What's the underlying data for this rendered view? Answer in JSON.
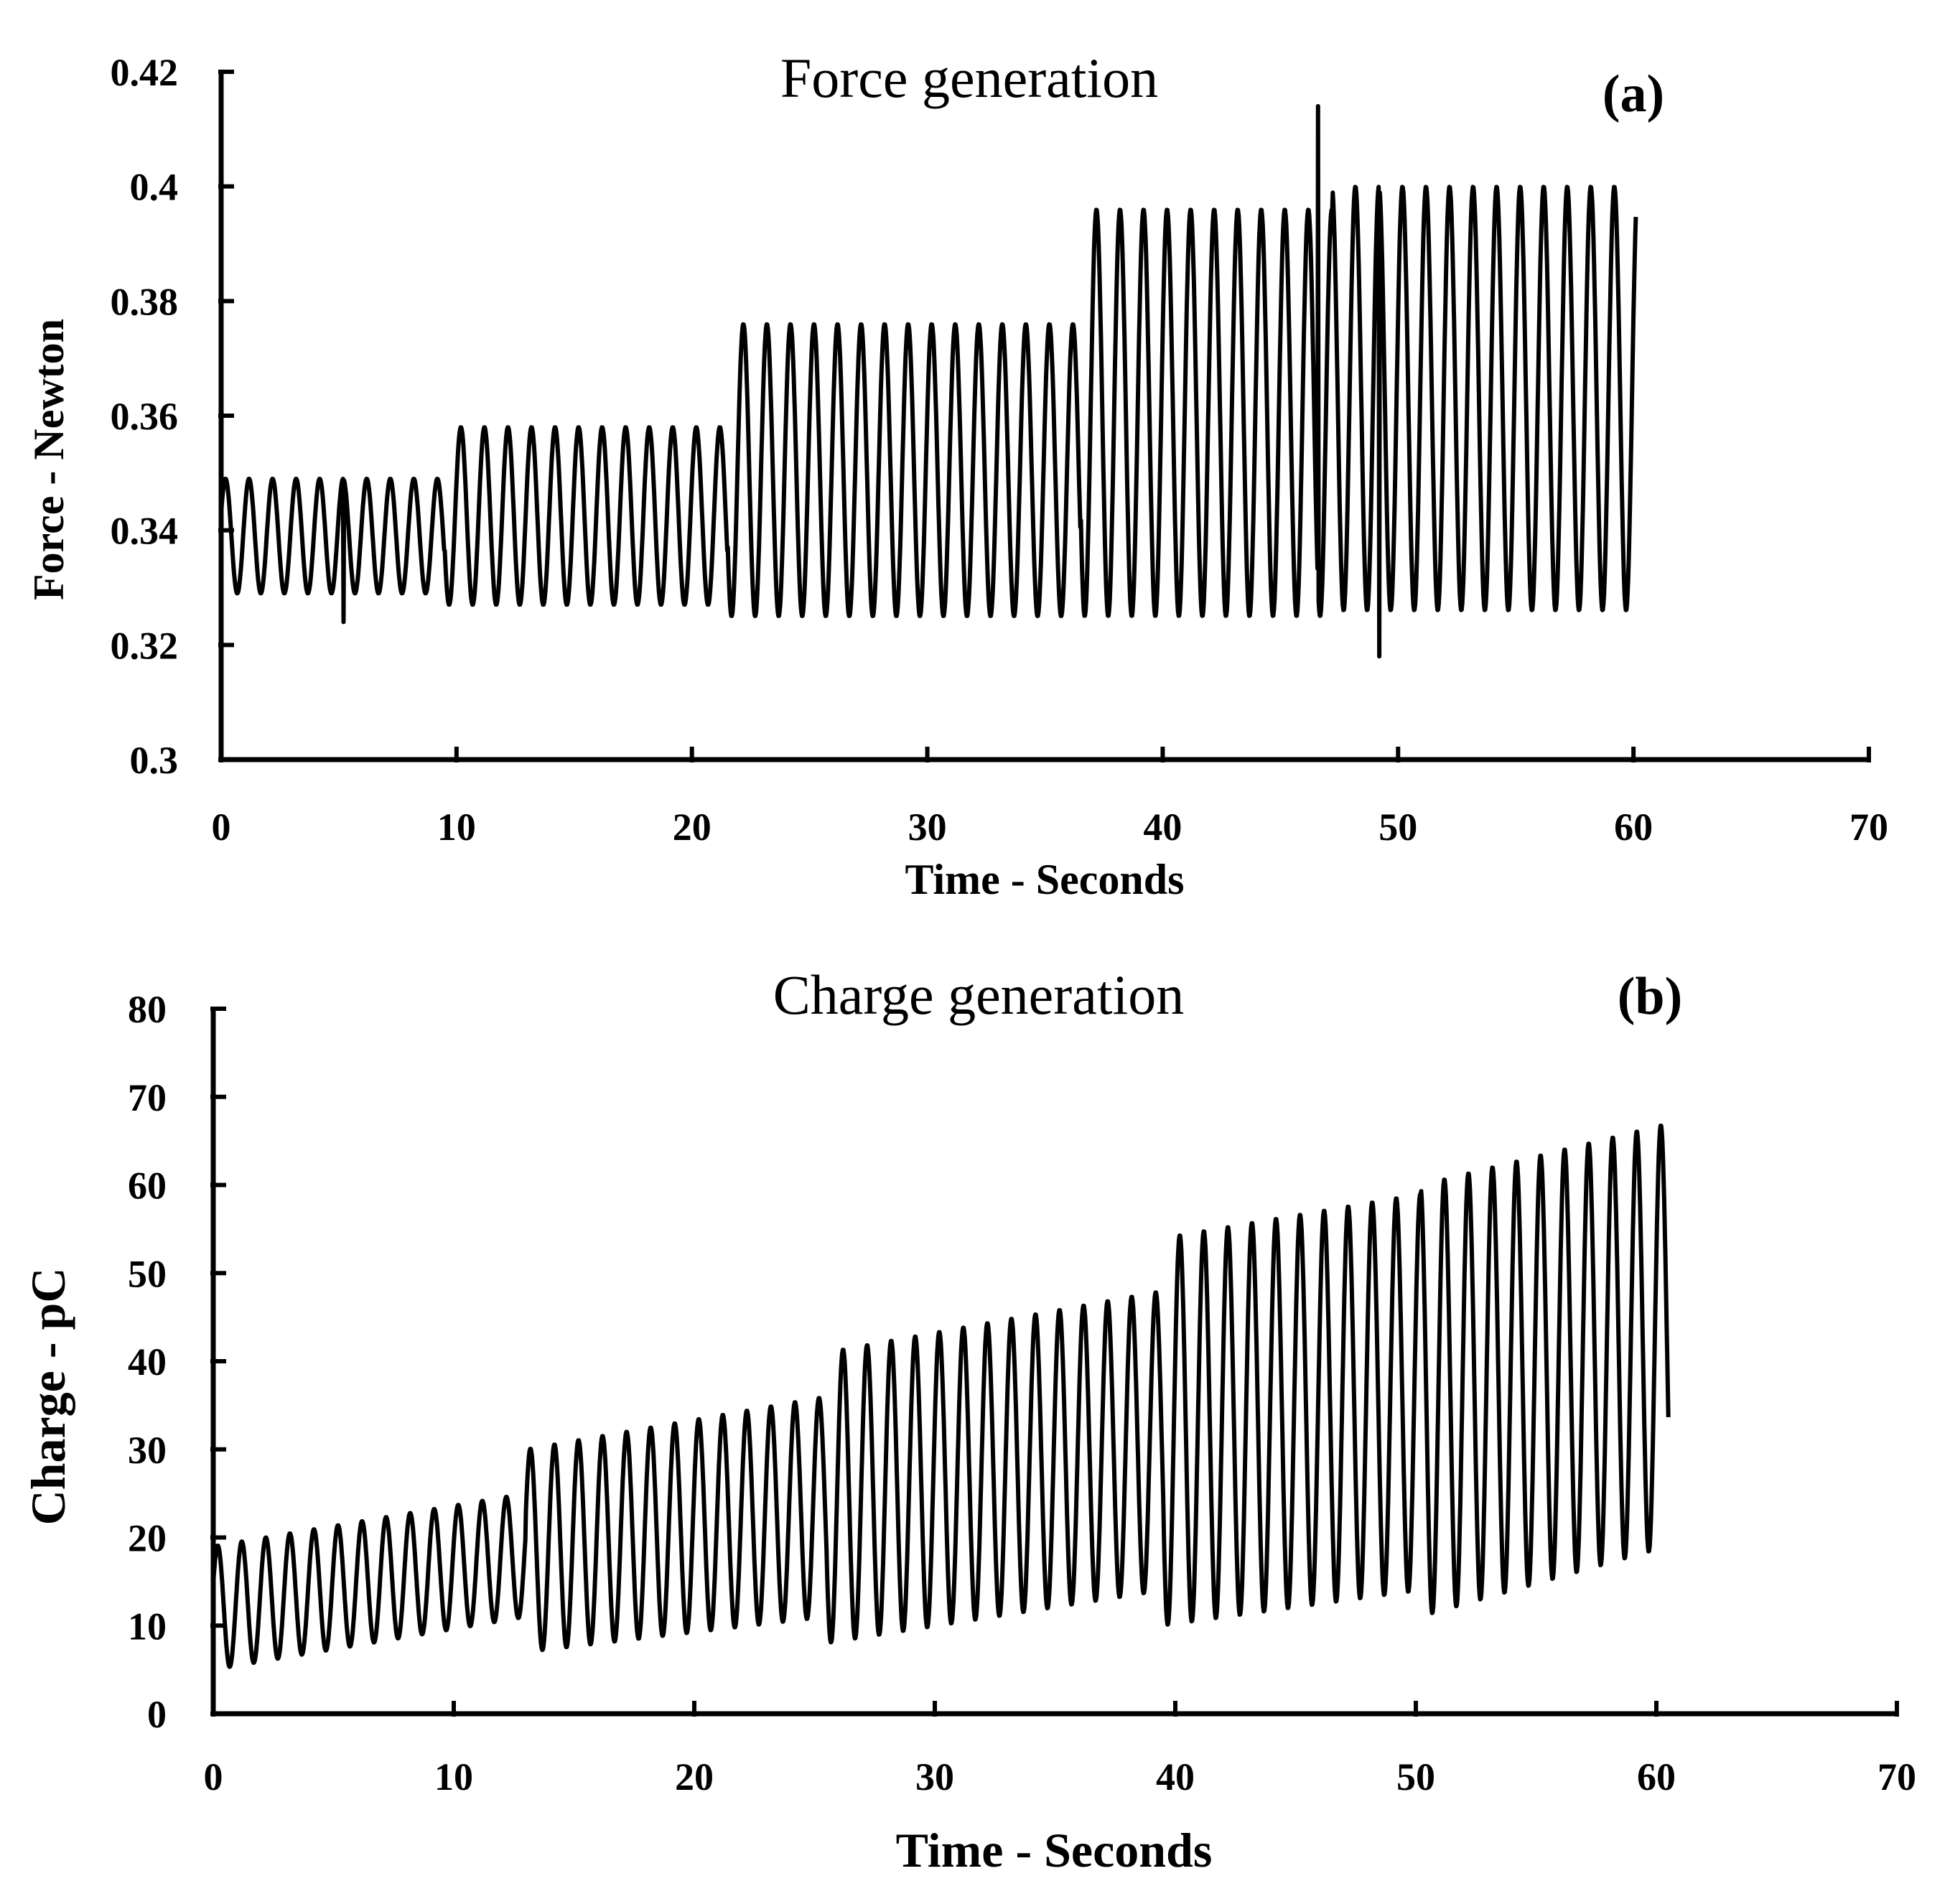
{
  "chart_data": [
    {
      "panel": "(a)",
      "type": "line",
      "title": "Force generation",
      "xlabel": "Time - Seconds",
      "ylabel": "Force - Newton",
      "xlim": [
        0,
        70
      ],
      "ylim": [
        0.3,
        0.42
      ],
      "xticks": [
        0,
        10,
        20,
        30,
        40,
        50,
        60,
        70
      ],
      "yticks": [
        0.3,
        0.32,
        0.34,
        0.36,
        0.38,
        0.4,
        0.42
      ],
      "ytick_labels": [
        "0.3",
        "0.32",
        "0.34",
        "0.36",
        "0.38",
        "0.4",
        "0.42"
      ],
      "grid": false,
      "legend": false,
      "series": [
        {
          "name": "Force",
          "color": "#000000",
          "period_s": 1.0,
          "x_end": 60.1,
          "segments": [
            {
              "t_start": 0,
              "t_end": 9.5,
              "peak": 0.349,
              "trough": 0.329
            },
            {
              "t_start": 9.5,
              "t_end": 21.5,
              "peak": 0.358,
              "trough": 0.327
            },
            {
              "t_start": 21.5,
              "t_end": 36.5,
              "peak": 0.376,
              "trough": 0.325
            },
            {
              "t_start": 36.5,
              "t_end": 47.2,
              "peak": 0.396,
              "trough": 0.325
            },
            {
              "t_start": 47.2,
              "t_end": 60.1,
              "peak": 0.4,
              "trough": 0.326
            }
          ],
          "spikes": [
            {
              "t": 46.6,
              "value": 0.414
            },
            {
              "t": 49.2,
              "value": 0.318
            },
            {
              "t": 5.2,
              "value": 0.324
            }
          ]
        }
      ]
    },
    {
      "panel": "(b)",
      "type": "line",
      "title": "Charge generation",
      "xlabel": "Time - Seconds",
      "ylabel": "Charge - pC",
      "xlim": [
        0,
        70
      ],
      "ylim": [
        0,
        80
      ],
      "xticks": [
        0,
        10,
        20,
        30,
        40,
        50,
        60,
        70
      ],
      "yticks": [
        0,
        10,
        20,
        30,
        40,
        50,
        60,
        70,
        80
      ],
      "ytick_labels": [
        "0",
        "10",
        "20",
        "30",
        "40",
        "50",
        "60",
        "70",
        "80"
      ],
      "grid": false,
      "legend": false,
      "series": [
        {
          "name": "Charge",
          "color": "#000000",
          "period_s": 1.0,
          "x_end": 60.5,
          "segments": [
            {
              "t_start": 0,
              "t_end": 13,
              "peak_start": 19,
              "peak_end": 25,
              "trough_start": 5,
              "trough_end": 11
            },
            {
              "t_start": 13,
              "t_end": 25.5,
              "peak_start": 30,
              "peak_end": 36,
              "trough_start": 7,
              "trough_end": 11
            },
            {
              "t_start": 25.5,
              "t_end": 39.5,
              "peak_start": 41,
              "peak_end": 48,
              "trough_start": 8,
              "trough_end": 14
            },
            {
              "t_start": 39.5,
              "t_end": 50.2,
              "peak_start": 54,
              "peak_end": 59,
              "trough_start": 10,
              "trough_end": 14
            },
            {
              "t_start": 50.2,
              "t_end": 60.5,
              "peak_start": 60,
              "peak_end": 67,
              "trough_start": 11,
              "trough_end": 19
            }
          ]
        }
      ]
    }
  ]
}
